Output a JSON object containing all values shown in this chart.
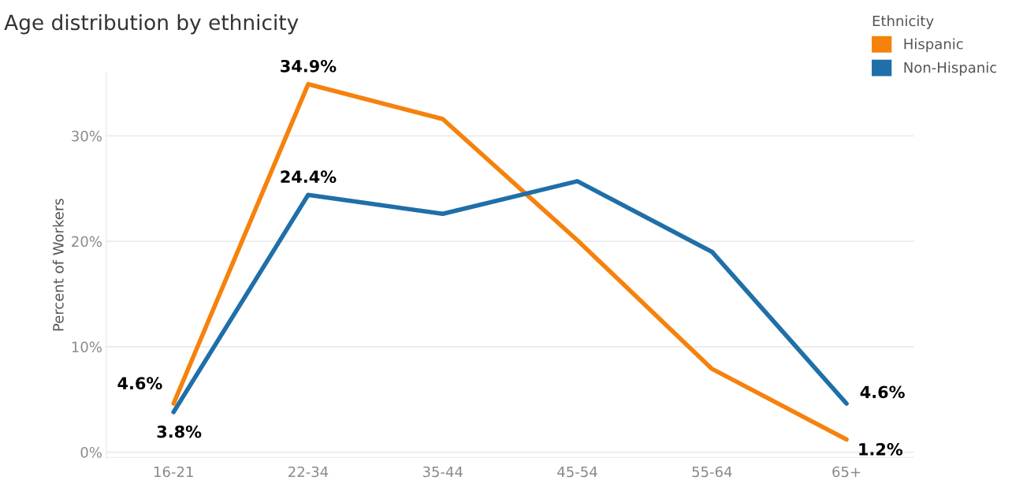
{
  "chart_data": {
    "type": "line",
    "title": "Age distribution by ethnicity",
    "ylabel": "Percent of Workers",
    "legend_title": "Ethnicity",
    "categories": [
      "16-21",
      "22-34",
      "35-44",
      "45-54",
      "55-64",
      "65+"
    ],
    "series": [
      {
        "name": "Hispanic",
        "color": "#f5820d",
        "values": [
          4.6,
          34.9,
          31.6,
          20.1,
          7.9,
          1.2
        ],
        "value_labels": [
          "4.6%",
          "34.9%",
          null,
          null,
          null,
          "1.2%"
        ]
      },
      {
        "name": "Non-Hispanic",
        "color": "#1f6fa8",
        "values": [
          3.8,
          24.4,
          22.6,
          25.7,
          19.0,
          4.6
        ],
        "value_labels": [
          "3.8%",
          "24.4%",
          null,
          null,
          null,
          "4.6%"
        ]
      }
    ],
    "ylim": [
      -0.5,
      36
    ],
    "yticks": [
      {
        "value": 0,
        "label": "0%"
      },
      {
        "value": 10,
        "label": "10%"
      },
      {
        "value": 20,
        "label": "20%"
      },
      {
        "value": 30,
        "label": "30%"
      }
    ],
    "grid": "y",
    "legend": "top right",
    "marker": "none",
    "line_style": "solid"
  }
}
